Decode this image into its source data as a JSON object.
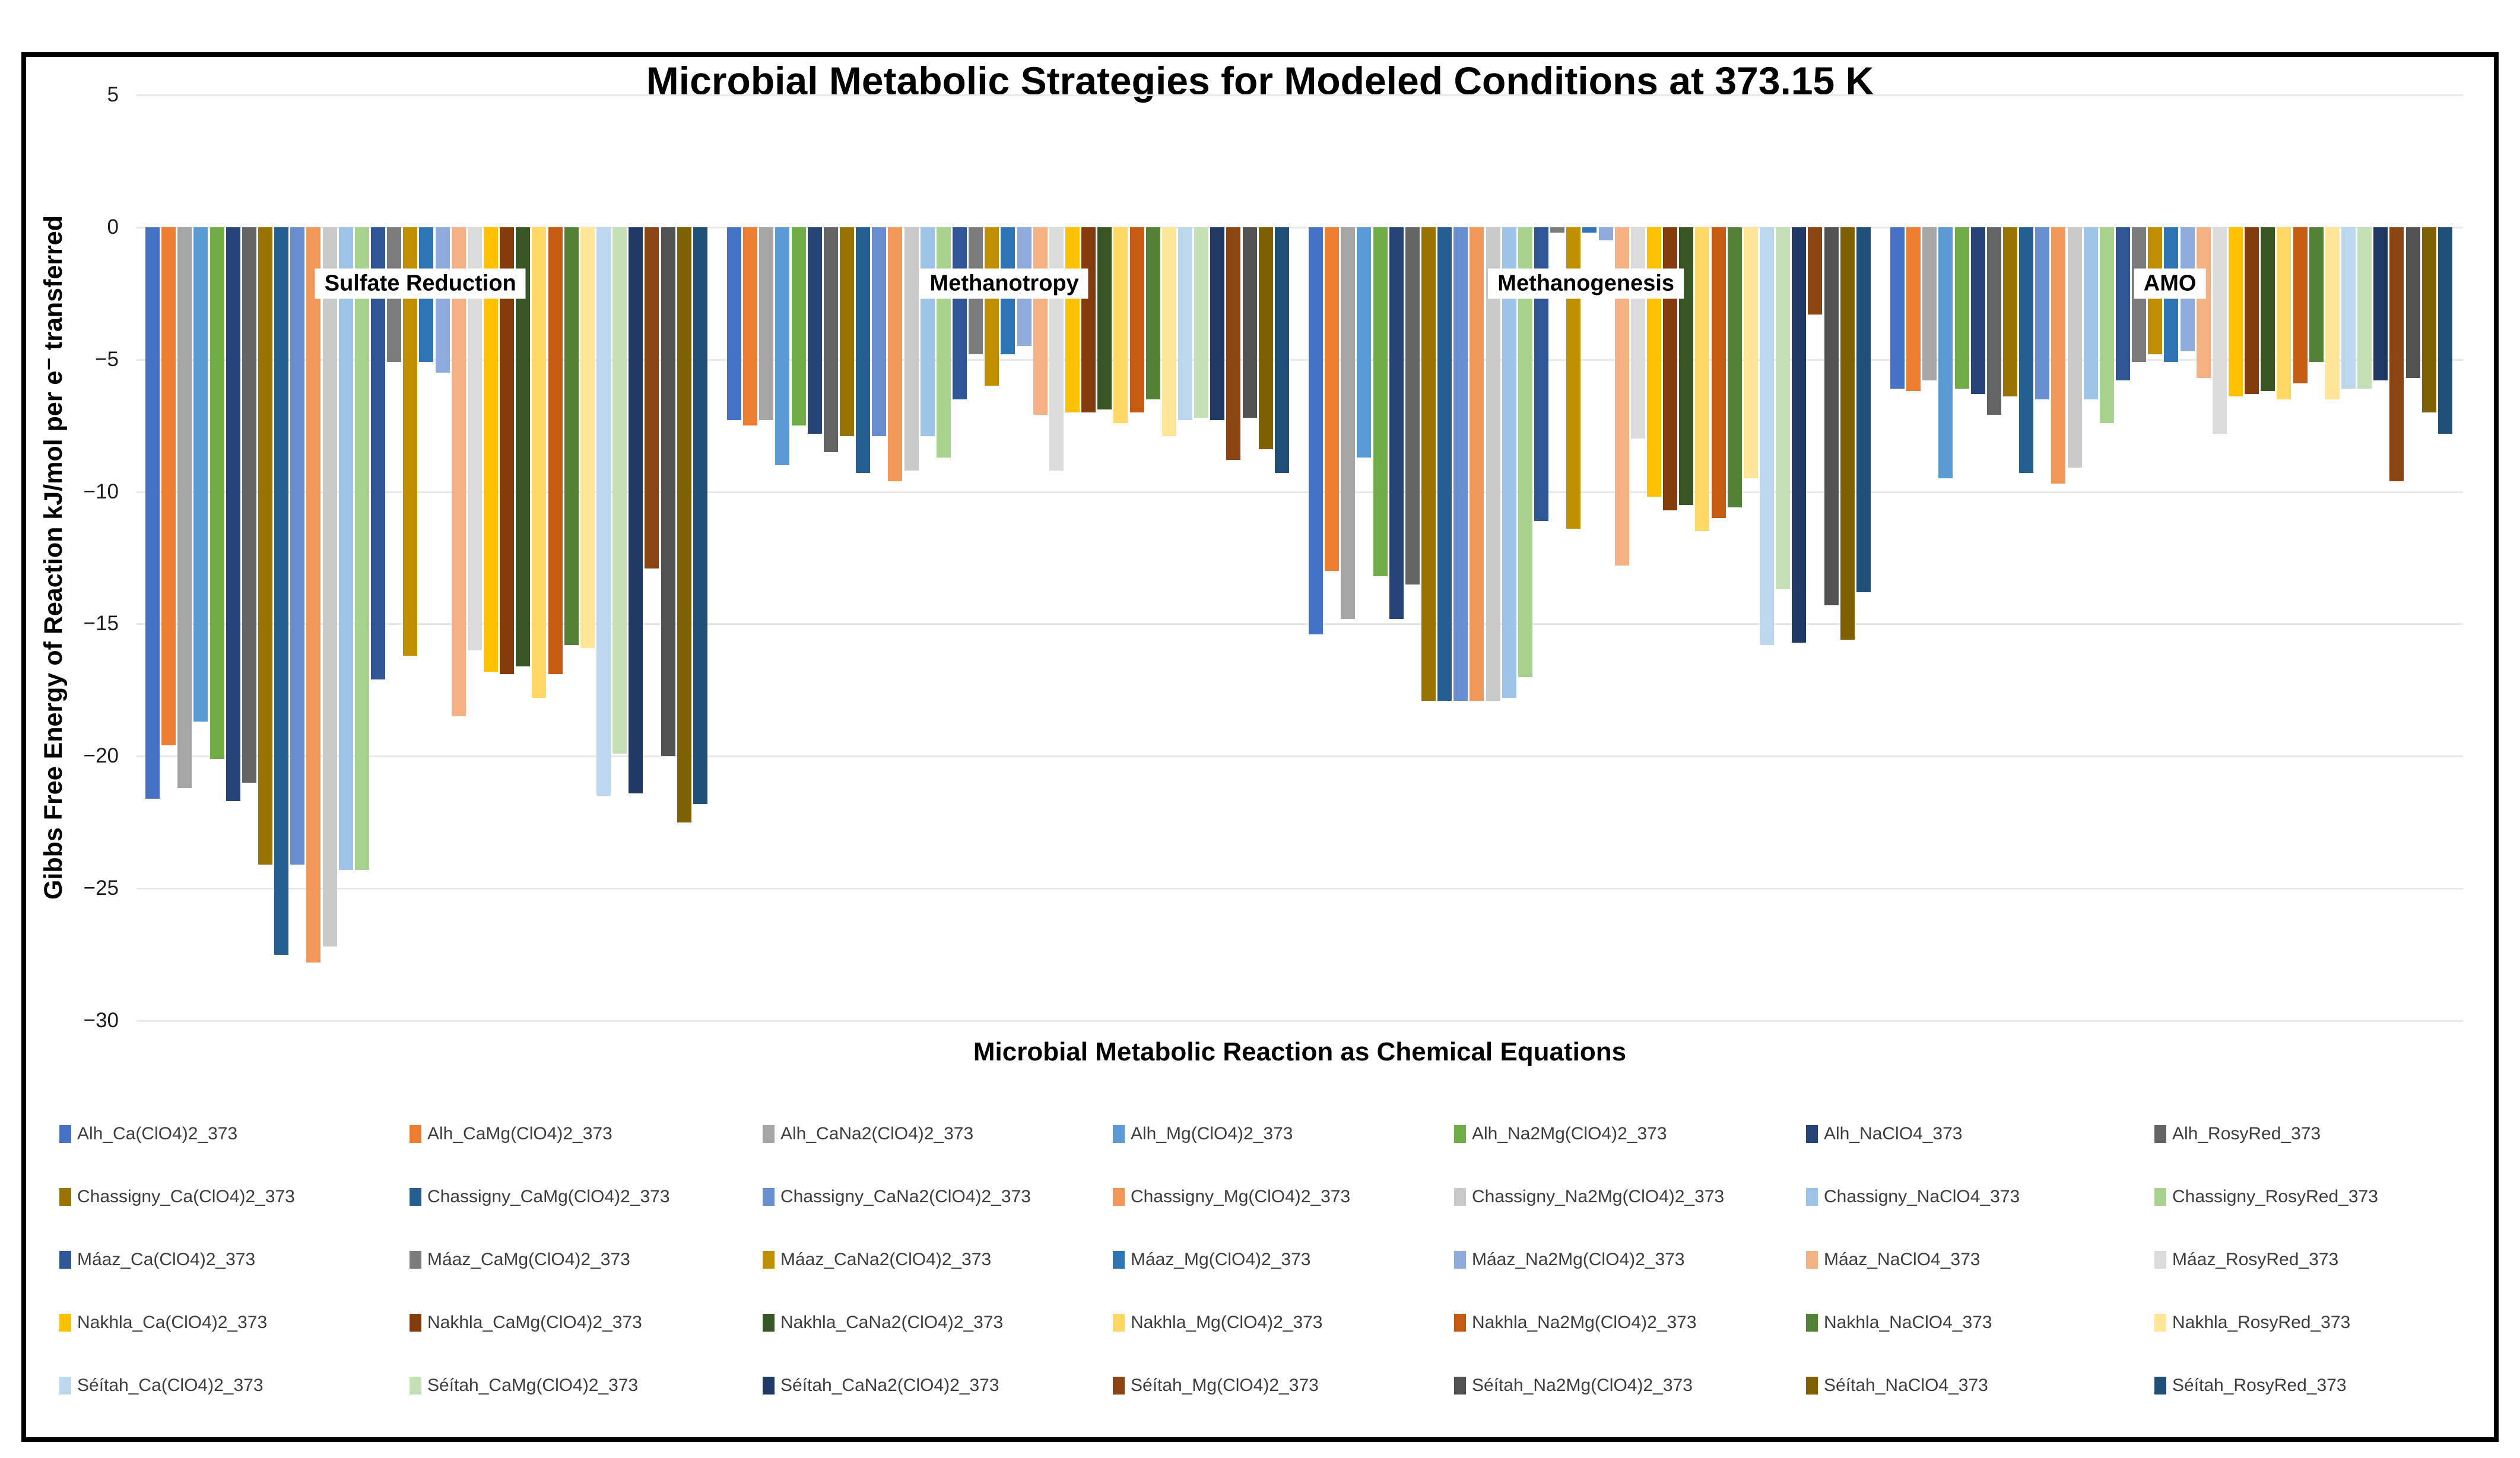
{
  "title": "Microbial Metabolic Strategies for Modeled Conditions at 373.15 K",
  "chart_data": {
    "type": "bar",
    "title": "Microbial Metabolic Strategies for Modeled Conditions at 373.15 K",
    "xlabel": "Microbial Metabolic Reaction as Chemical Equations",
    "ylabel": "Gibbs Free Energy of Reaction kJ/mol per e⁻ transferred",
    "ylim": [
      -30,
      5
    ],
    "yticks": [
      5,
      0,
      -5,
      -10,
      -15,
      -20,
      -25,
      -30
    ],
    "ytick_labels": [
      "5",
      "0",
      "−5",
      "−10",
      "−15",
      "−20",
      "−25",
      "−30"
    ],
    "grid": true,
    "legend_position": "bottom",
    "legend_columns": 7,
    "categories": [
      "Sulfate Reduction",
      "Methanotropy",
      "Methanogenesis",
      "AMO"
    ],
    "category_label_x_pct": [
      12.2,
      37.3,
      62.3,
      87.4
    ],
    "category_label_y_pct": 20.4,
    "series": [
      {
        "name": "Alh_Ca(ClO4)2_373",
        "color": "#4472C4",
        "values": [
          -21.6,
          -7.3,
          -15.4,
          -6.1
        ]
      },
      {
        "name": "Alh_CaMg(ClO4)2_373",
        "color": "#ED7D31",
        "values": [
          -19.6,
          -7.5,
          -13.0,
          -6.2
        ]
      },
      {
        "name": "Alh_CaNa2(ClO4)2_373",
        "color": "#A5A5A5",
        "values": [
          -21.2,
          -7.3,
          -14.8,
          -5.8
        ]
      },
      {
        "name": "Alh_Mg(ClO4)2_373",
        "color": "#5B9BD5",
        "values": [
          -18.7,
          -9.0,
          -8.7,
          -9.5
        ]
      },
      {
        "name": "Alh_Na2Mg(ClO4)2_373",
        "color": "#70AD47",
        "values": [
          -20.1,
          -7.5,
          -13.2,
          -6.1
        ]
      },
      {
        "name": "Alh_NaClO4_373",
        "color": "#264478",
        "values": [
          -21.7,
          -7.8,
          -14.8,
          -6.3
        ]
      },
      {
        "name": "Alh_RosyRed_373",
        "color": "#636363",
        "values": [
          -21.0,
          -8.5,
          -13.5,
          -7.1
        ]
      },
      {
        "name": "Chassigny_Ca(ClO4)2_373",
        "color": "#997300",
        "values": [
          -24.1,
          -7.9,
          -17.9,
          -6.4
        ]
      },
      {
        "name": "Chassigny_CaMg(ClO4)2_373",
        "color": "#255E91",
        "values": [
          -27.5,
          -9.3,
          -17.9,
          -9.3
        ]
      },
      {
        "name": "Chassigny_CaNa2(ClO4)2_373",
        "color": "#698ED0",
        "values": [
          -24.1,
          -7.9,
          -17.9,
          -6.5
        ]
      },
      {
        "name": "Chassigny_Mg(ClO4)2_373",
        "color": "#F1975A",
        "values": [
          -27.8,
          -9.6,
          -17.9,
          -9.7
        ]
      },
      {
        "name": "Chassigny_Na2Mg(ClO4)2_373",
        "color": "#C9C9C9",
        "values": [
          -27.2,
          -9.2,
          -17.9,
          -9.1
        ]
      },
      {
        "name": "Chassigny_NaClO4_373",
        "color": "#9DC3E6",
        "values": [
          -24.3,
          -7.9,
          -17.8,
          -6.5
        ]
      },
      {
        "name": "Chassigny_RosyRed_373",
        "color": "#A9D18E",
        "values": [
          -24.3,
          -8.7,
          -17.0,
          -7.4
        ]
      },
      {
        "name": "Máaz_Ca(ClO4)2_373",
        "color": "#2F5597",
        "values": [
          -17.1,
          -6.5,
          -11.1,
          -5.8
        ]
      },
      {
        "name": "Máaz_CaMg(ClO4)2_373",
        "color": "#7B7B7B",
        "values": [
          -5.1,
          -4.8,
          -0.2,
          -5.1
        ]
      },
      {
        "name": "Máaz_CaNa2(ClO4)2_373",
        "color": "#BF8F00",
        "values": [
          -16.2,
          -6.0,
          -11.4,
          -4.8
        ]
      },
      {
        "name": "Máaz_Mg(ClO4)2_373",
        "color": "#2E75B6",
        "values": [
          -5.1,
          -4.8,
          -0.2,
          -5.1
        ]
      },
      {
        "name": "Máaz_Na2Mg(ClO4)2_373",
        "color": "#8FAADC",
        "values": [
          -5.5,
          -4.5,
          -0.5,
          -4.7
        ]
      },
      {
        "name": "Máaz_NaClO4_373",
        "color": "#F4B183",
        "values": [
          -18.5,
          -7.1,
          -12.8,
          -5.7
        ]
      },
      {
        "name": "Máaz_RosyRed_373",
        "color": "#DBDBDB",
        "values": [
          -16.0,
          -9.2,
          -8.0,
          -7.8
        ]
      },
      {
        "name": "Nakhla_Ca(ClO4)2_373",
        "color": "#FFC000",
        "values": [
          -16.8,
          -7.0,
          -10.2,
          -6.4
        ]
      },
      {
        "name": "Nakhla_CaMg(ClO4)2_373",
        "color": "#843C0C",
        "values": [
          -16.9,
          -7.0,
          -10.7,
          -6.3
        ]
      },
      {
        "name": "Nakhla_CaNa2(ClO4)2_373",
        "color": "#375623",
        "values": [
          -16.6,
          -6.9,
          -10.5,
          -6.2
        ]
      },
      {
        "name": "Nakhla_Mg(ClO4)2_373",
        "color": "#FFD966",
        "values": [
          -17.8,
          -7.4,
          -11.5,
          -6.5
        ]
      },
      {
        "name": "Nakhla_Na2Mg(ClO4)2_373",
        "color": "#C55A11",
        "values": [
          -16.9,
          -7.0,
          -11.0,
          -5.9
        ]
      },
      {
        "name": "Nakhla_NaClO4_373",
        "color": "#538135",
        "values": [
          -15.8,
          -6.5,
          -10.6,
          -5.1
        ]
      },
      {
        "name": "Nakhla_RosyRed_373",
        "color": "#FFE699",
        "values": [
          -15.9,
          -7.9,
          -9.5,
          -6.5
        ]
      },
      {
        "name": "Séítah_Ca(ClO4)2_373",
        "color": "#BDD7EE",
        "values": [
          -21.5,
          -7.3,
          -15.8,
          -6.1
        ]
      },
      {
        "name": "Séítah_CaMg(ClO4)2_373",
        "color": "#C5E0B4",
        "values": [
          -19.9,
          -7.2,
          -13.7,
          -6.1
        ]
      },
      {
        "name": "Séítah_CaNa2(ClO4)2_373",
        "color": "#1F3864",
        "values": [
          -21.4,
          -7.3,
          -15.7,
          -5.8
        ]
      },
      {
        "name": "Séítah_Mg(ClO4)2_373",
        "color": "#8B4513",
        "values": [
          -12.9,
          -8.8,
          -3.3,
          -9.6
        ]
      },
      {
        "name": "Séítah_Na2Mg(ClO4)2_373",
        "color": "#525252",
        "values": [
          -20.0,
          -7.2,
          -14.3,
          -5.7
        ]
      },
      {
        "name": "Séítah_NaClO4_373",
        "color": "#7F6000",
        "values": [
          -22.5,
          -8.4,
          -15.6,
          -7.0
        ]
      },
      {
        "name": "Séítah_RosyRed_373",
        "color": "#1F4E79",
        "values": [
          -21.8,
          -9.3,
          -13.8,
          -7.8
        ]
      }
    ]
  }
}
